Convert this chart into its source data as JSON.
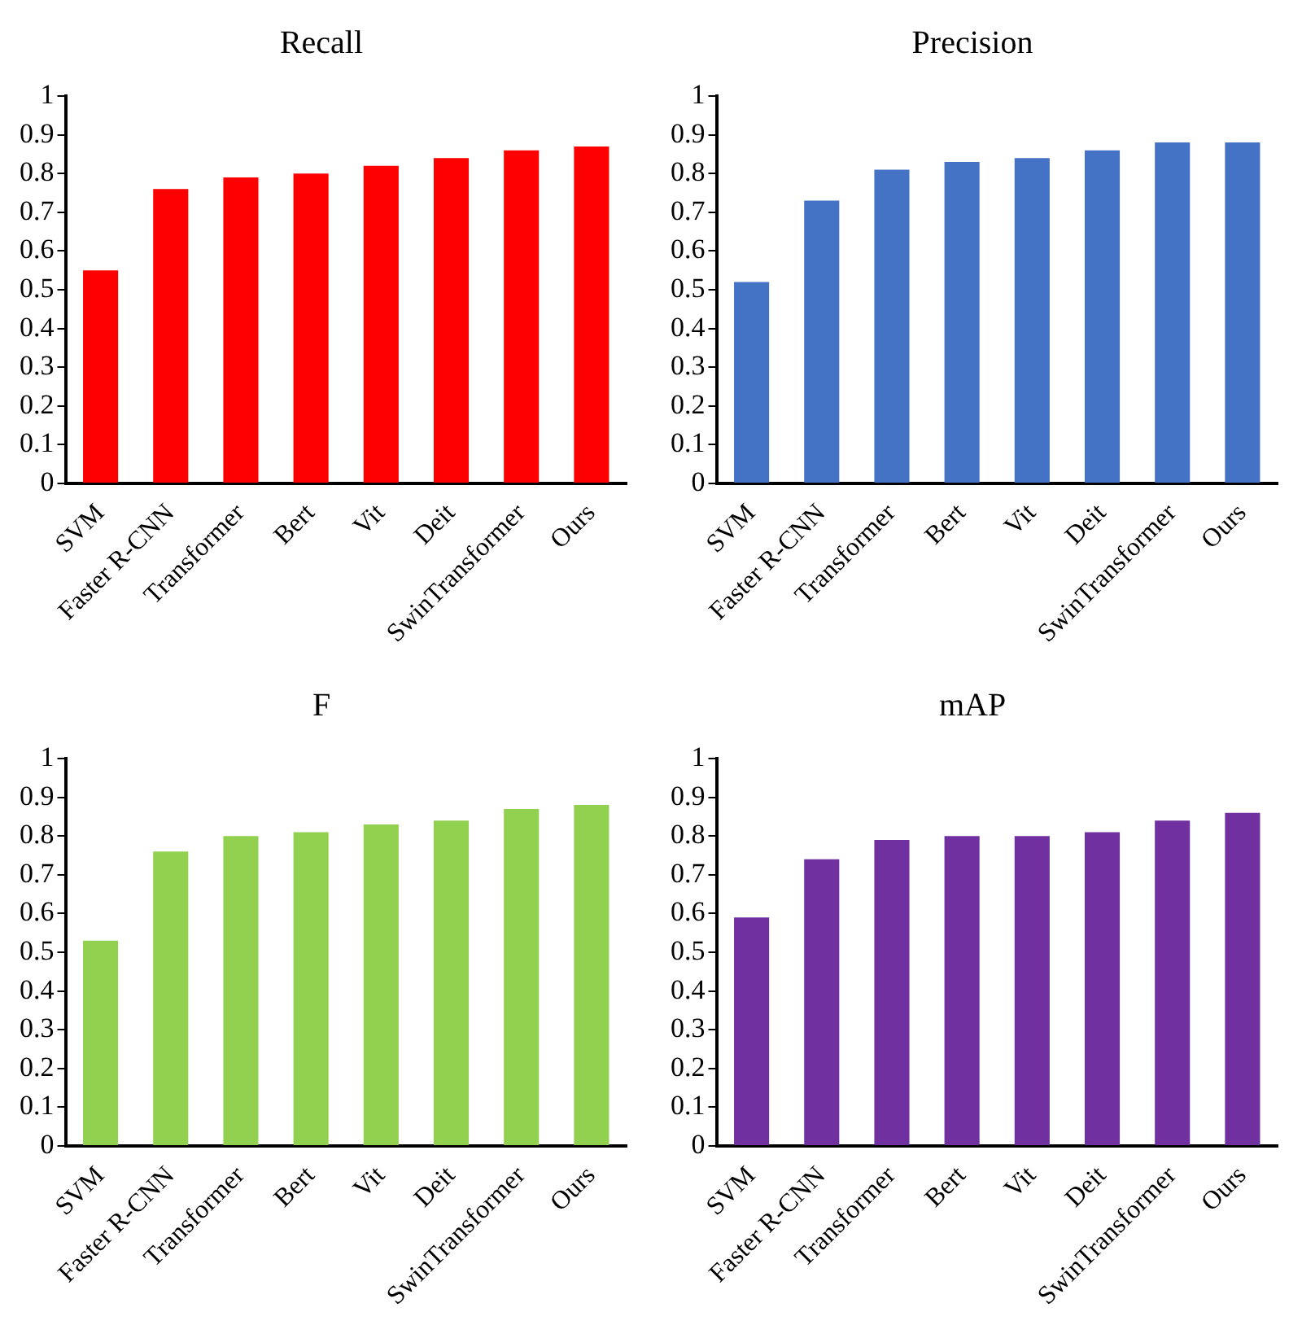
{
  "chart_data": [
    {
      "type": "bar",
      "title": "Recall",
      "categories": [
        "SVM",
        "Faster R-CNN",
        "Transformer",
        "Bert",
        "Vit",
        "Deit",
        "SwinTransformer",
        "Ours"
      ],
      "values": [
        0.55,
        0.76,
        0.79,
        0.8,
        0.82,
        0.84,
        0.86,
        0.87
      ],
      "color": "#ff0000",
      "ylim": [
        0,
        1
      ],
      "yticks": [
        0,
        0.1,
        0.2,
        0.3,
        0.4,
        0.5,
        0.6,
        0.7,
        0.8,
        0.9,
        1
      ],
      "grid": false,
      "legend": false
    },
    {
      "type": "bar",
      "title": "Precision",
      "categories": [
        "SVM",
        "Faster R-CNN",
        "Transformer",
        "Bert",
        "Vit",
        "Deit",
        "SwinTransformer",
        "Ours"
      ],
      "values": [
        0.52,
        0.73,
        0.81,
        0.83,
        0.84,
        0.86,
        0.88,
        0.88
      ],
      "color": "#4472c4",
      "ylim": [
        0,
        1
      ],
      "yticks": [
        0,
        0.1,
        0.2,
        0.3,
        0.4,
        0.5,
        0.6,
        0.7,
        0.8,
        0.9,
        1
      ],
      "grid": false,
      "legend": false
    },
    {
      "type": "bar",
      "title": "F",
      "categories": [
        "SVM",
        "Faster R-CNN",
        "Transformer",
        "Bert",
        "Vit",
        "Deit",
        "SwinTransformer",
        "Ours"
      ],
      "values": [
        0.53,
        0.76,
        0.8,
        0.81,
        0.83,
        0.84,
        0.87,
        0.88
      ],
      "color": "#92d050",
      "ylim": [
        0,
        1
      ],
      "yticks": [
        0,
        0.1,
        0.2,
        0.3,
        0.4,
        0.5,
        0.6,
        0.7,
        0.8,
        0.9,
        1
      ],
      "grid": false,
      "legend": false
    },
    {
      "type": "bar",
      "title": "mAP",
      "categories": [
        "SVM",
        "Faster R-CNN",
        "Transformer",
        "Bert",
        "Vit",
        "Deit",
        "SwinTransformer",
        "Ours"
      ],
      "values": [
        0.59,
        0.74,
        0.79,
        0.8,
        0.8,
        0.81,
        0.84,
        0.86
      ],
      "color": "#7030a0",
      "ylim": [
        0,
        1
      ],
      "yticks": [
        0,
        0.1,
        0.2,
        0.3,
        0.4,
        0.5,
        0.6,
        0.7,
        0.8,
        0.9,
        1
      ],
      "grid": false,
      "legend": false
    }
  ]
}
